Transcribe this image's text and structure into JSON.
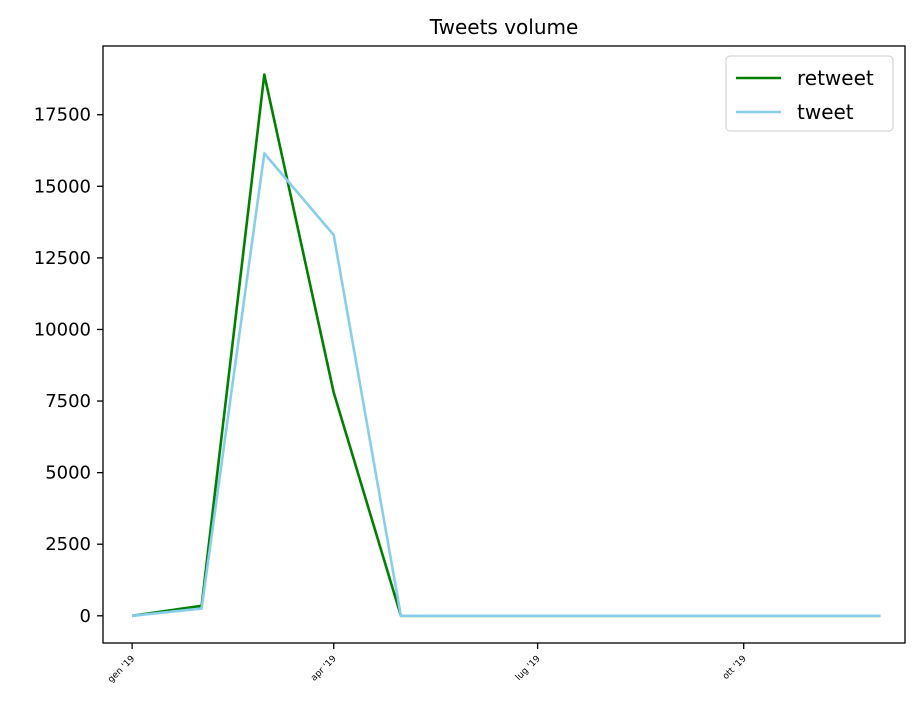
{
  "chart_data": {
    "type": "line",
    "title": "Tweets volume",
    "xlabel": "",
    "ylabel": "",
    "x": [
      "2019-01-01",
      "2019-02-01",
      "2019-03-01",
      "2019-04-01",
      "2019-05-01",
      "2019-06-01",
      "2019-07-01",
      "2019-08-01",
      "2019-09-01",
      "2019-10-01",
      "2019-11-01",
      "2019-12-01"
    ],
    "series": [
      {
        "name": "retweet",
        "color": "#008000",
        "values": [
          0,
          350,
          18900,
          7800,
          0,
          0,
          0,
          0,
          0,
          0,
          0,
          0
        ]
      },
      {
        "name": "tweet",
        "color": "#87ceeb",
        "values": [
          0,
          250,
          16150,
          13300,
          0,
          0,
          0,
          0,
          0,
          0,
          0,
          0
        ]
      }
    ],
    "ylim": [
      -950,
      19900
    ],
    "xlim": [
      "2018-12-19",
      "2019-12-12"
    ],
    "yticks": [
      0,
      2500,
      5000,
      7500,
      10000,
      12500,
      15000,
      17500
    ],
    "xticks": [
      {
        "date": "2019-01-01",
        "label": "gen '19"
      },
      {
        "date": "2019-04-01",
        "label": "apr '19"
      },
      {
        "date": "2019-07-01",
        "label": "lug '19"
      },
      {
        "date": "2019-10-01",
        "label": "ott '19"
      }
    ],
    "legend": "top-right",
    "grid": false
  }
}
